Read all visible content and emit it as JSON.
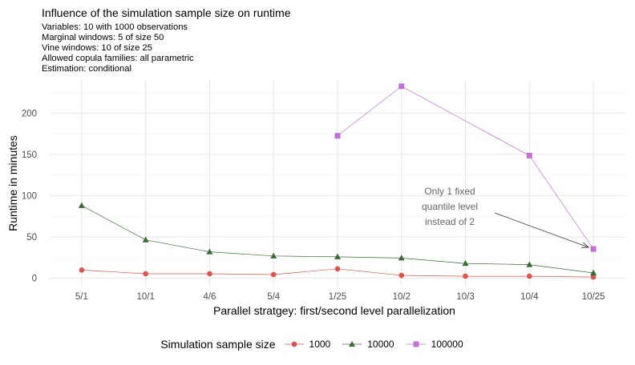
{
  "header": {
    "title": "Influence of the simulation sample size on runtime",
    "subtitle_lines": [
      "Variables: 10 with 1000 observations",
      "Marginal windows: 5 of size 50",
      "Vine windows: 10 of size 25",
      "Allowed copula families: all parametric",
      "Estimation: conditional"
    ]
  },
  "chart_data": {
    "type": "line",
    "xlabel": "Parallel stratgey: first/second level parallelization",
    "ylabel": "Runtime in minutes",
    "categories": [
      "5/1",
      "10/1",
      "4/6",
      "5/4",
      "1/25",
      "10/2",
      "10/3",
      "10/4",
      "10/25"
    ],
    "ylim": [
      -10,
      240
    ],
    "yticks": [
      0,
      50,
      100,
      150,
      200
    ],
    "grid": true,
    "legend_position": "bottom",
    "legend_title": "Simulation sample size",
    "series": [
      {
        "name": "1000",
        "color": "#d9534f",
        "marker": "circle",
        "values": [
          10,
          5.5,
          5.5,
          4.5,
          11.5,
          3.5,
          2.5,
          2.5,
          1.5
        ]
      },
      {
        "name": "10000",
        "color": "#3a6b35",
        "marker": "triangle",
        "values": [
          88,
          46.5,
          32,
          27,
          26,
          24.5,
          18,
          16.5,
          6.5
        ]
      },
      {
        "name": "100000",
        "color": "#c46fd6",
        "marker": "square",
        "values": [
          null,
          null,
          null,
          null,
          172.5,
          232.5,
          null,
          148.5,
          35.5
        ]
      }
    ],
    "annotation": {
      "lines": [
        "Only 1 fixed",
        "quantile level",
        "instead of 2"
      ],
      "target_category": "10/25",
      "target_value": 35.5
    }
  }
}
